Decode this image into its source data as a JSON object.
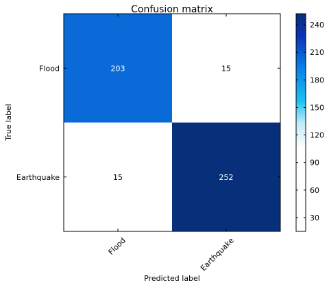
{
  "chart_data": {
    "type": "heatmap",
    "title": "Confusion matrix",
    "xlabel": "Predicted label",
    "ylabel": "True label",
    "x_categories": [
      "Flood",
      "Earthquake"
    ],
    "y_categories": [
      "Flood",
      "Earthquake"
    ],
    "values": [
      [
        203,
        15
      ],
      [
        15,
        252
      ]
    ],
    "colorbar": {
      "range": [
        15,
        252
      ],
      "ticks": [
        30,
        60,
        90,
        120,
        150,
        180,
        210,
        240
      ],
      "colors": [
        "#ffffff",
        "#ffffff",
        "#ffffff",
        "#ffffff",
        "#1ec0f0",
        "#0a82e6",
        "#0a32b4",
        "#08307a"
      ]
    }
  }
}
